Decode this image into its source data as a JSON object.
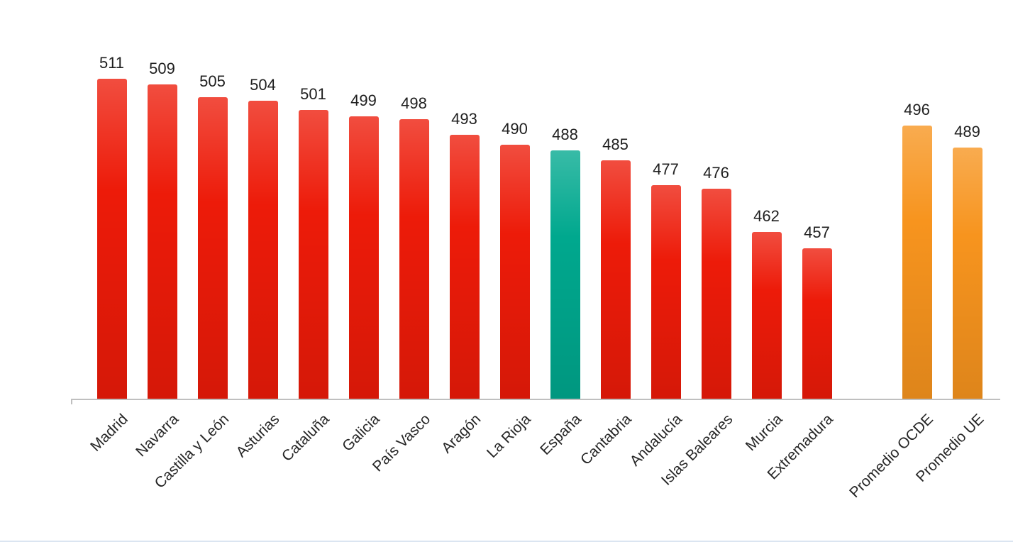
{
  "chart_data": {
    "type": "bar",
    "title": "",
    "xlabel": "",
    "ylabel": "",
    "categories": [
      "Madrid",
      "Navarra",
      "Castilla y León",
      "Asturias",
      "Cataluña",
      "Galicia",
      "País Vasco",
      "Aragón",
      "La Rioja",
      "España",
      "Cantabria",
      "Andalucía",
      "Islas Baleares",
      "Murcia",
      "Extremadura",
      "Promedio OCDE",
      "Promedio UE"
    ],
    "values": [
      511,
      509,
      505,
      504,
      501,
      499,
      498,
      493,
      490,
      488,
      485,
      477,
      476,
      462,
      457,
      496,
      489
    ],
    "bar_colors": [
      "red",
      "red",
      "red",
      "red",
      "red",
      "red",
      "red",
      "red",
      "red",
      "teal",
      "red",
      "red",
      "red",
      "red",
      "red",
      "orange",
      "orange"
    ],
    "palette": {
      "red": "#ed1b09",
      "teal": "#00a88e",
      "orange": "#f7941e"
    },
    "value_label_color": "#1f1f1f",
    "axis_color": "#bfbfbf",
    "ylim": [
      409,
      536
    ],
    "grid": false,
    "legend": "none",
    "gap_before": "Promedio OCDE",
    "data_labels": true
  }
}
